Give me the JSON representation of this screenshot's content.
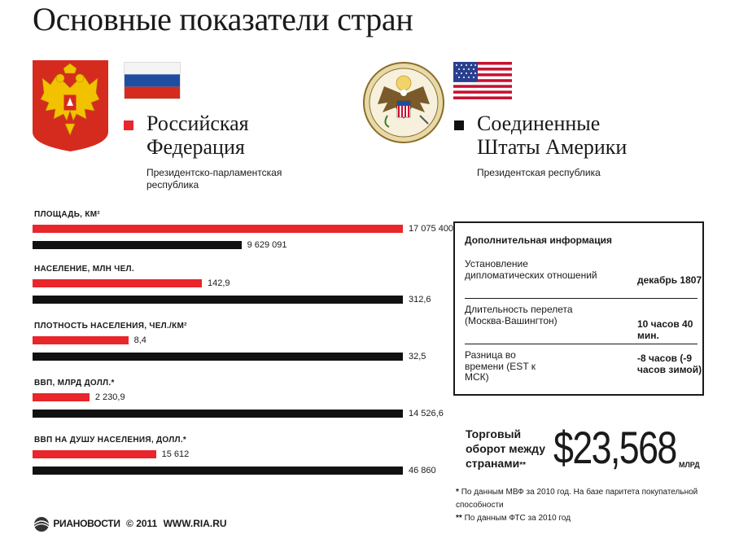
{
  "title": "Основные показатели стран",
  "countries": {
    "ru": {
      "name_line1": "Российская",
      "name_line2": "Федерация",
      "gov": "Президентско-парламентская республика",
      "color": "#e8262b"
    },
    "us": {
      "name_line1": "Соединенные",
      "name_line2": "Штаты Америки",
      "gov": "Президентская республика",
      "color": "#111111"
    }
  },
  "chart_data": {
    "type": "bar",
    "categories": [
      "ПЛОЩАДЬ, КМ²",
      "НАСЕЛЕНИЕ, МЛН ЧЕЛ.",
      "ПЛОТНОСТЬ НАСЕЛЕНИЯ, ЧЕЛ./КМ²",
      "ВВП, МЛРД ДОЛЛ.*",
      "ВВП НА ДУШУ НАСЕЛЕНИЯ, ДОЛЛ.*"
    ],
    "series": [
      {
        "name": "Российская Федерация",
        "values": [
          17075400,
          142.9,
          8.4,
          2230.9,
          15612
        ],
        "labels": [
          "17 075 400",
          "142,9",
          "8,4",
          "2 230,9",
          "15 612"
        ],
        "color": "#e8262b"
      },
      {
        "name": "Соединенные Штаты Америки",
        "values": [
          9629091,
          312.6,
          32.5,
          14526.6,
          46860
        ],
        "labels": [
          "9 629 091",
          "312,6",
          "32,5",
          "14 526,6",
          "46 860"
        ],
        "color": "#111111"
      }
    ]
  },
  "info": {
    "title": "Дополнительная информация",
    "rows": [
      {
        "label": "Установление дипломатических отношений",
        "value": "декабрь 1807"
      },
      {
        "label": "Длительность перелета (Москва-Вашингтон)",
        "value": "10 часов 40 мин."
      },
      {
        "label": "Разница во времени (EST к МСК)",
        "value": "-8 часов (-9 часов зимой)"
      }
    ]
  },
  "trade": {
    "label": "Торговый оборот между странами",
    "label_mark": "**",
    "value": "$23,568",
    "unit": "МЛРД"
  },
  "footnotes": [
    {
      "mark": "*",
      "text": "По данным МВФ за 2010 год. На базе паритета покупательной способности"
    },
    {
      "mark": "**",
      "text": "По данным ФТС за 2010 год"
    }
  ],
  "branding": {
    "logo": "РИАНОВОСТИ",
    "copyright": "© 2011",
    "site": "WWW.RIA.RU"
  },
  "icons": {
    "ru_emblem": "russian-coat-of-arms-icon",
    "us_seal": "us-great-seal-icon",
    "ru_flag": "russian-flag-icon",
    "us_flag": "us-flag-icon"
  }
}
